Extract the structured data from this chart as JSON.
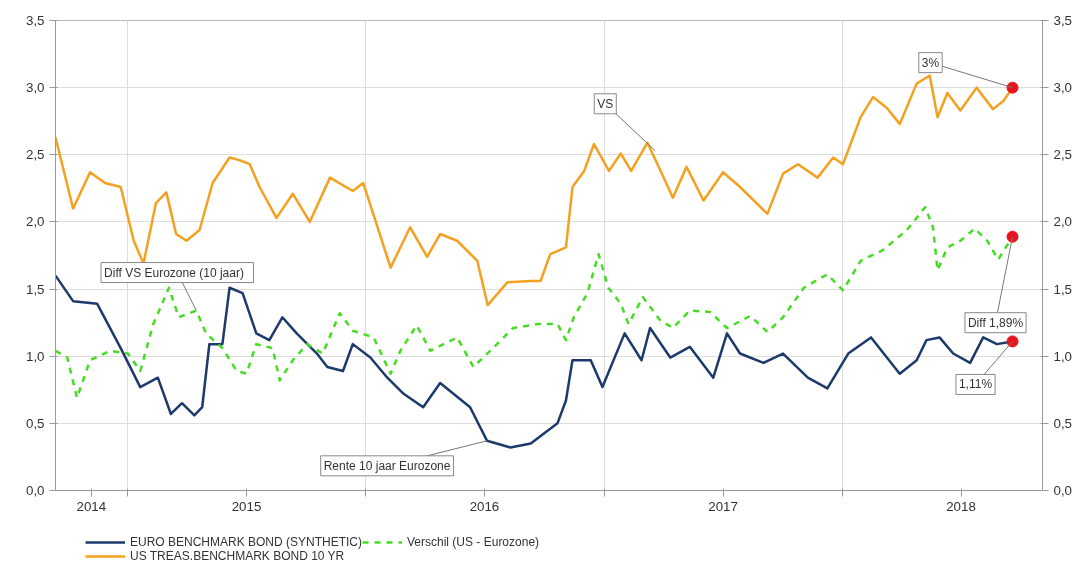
{
  "chart_data": {
    "type": "line",
    "xlim": [
      "2014-09-12",
      "2018-11-04"
    ],
    "xticks": [
      {
        "value": "2014-11-06",
        "label": "2014"
      },
      {
        "value": "2015-01-01",
        "label": null
      },
      {
        "value": "2015-07-02",
        "label": "2015"
      },
      {
        "value": "2016-01-01",
        "label": null
      },
      {
        "value": "2016-07-01",
        "label": "2016"
      },
      {
        "value": "2017-01-01",
        "label": null
      },
      {
        "value": "2017-07-02",
        "label": "2017"
      },
      {
        "value": "2018-01-01",
        "label": null
      },
      {
        "value": "2018-07-02",
        "label": "2018"
      }
    ],
    "ylim": [
      0,
      3.5
    ],
    "yticks": [
      {
        "value": 0,
        "label": "0,0"
      },
      {
        "value": 0.5,
        "label": "0,5"
      },
      {
        "value": 1,
        "label": "1,0"
      },
      {
        "value": 1.5,
        "label": "1,5"
      },
      {
        "value": 2,
        "label": "2,0"
      },
      {
        "value": 2.5,
        "label": "2,5"
      },
      {
        "value": 3,
        "label": "3,0"
      },
      {
        "value": 3.5,
        "label": "3,5"
      }
    ],
    "y2lim": [
      0,
      3.5
    ],
    "y2ticks": [
      {
        "value": 0,
        "label": "0,0"
      },
      {
        "value": 0.5,
        "label": "0,5"
      },
      {
        "value": 1,
        "label": "1,0"
      },
      {
        "value": 1.5,
        "label": "1,5"
      },
      {
        "value": 2,
        "label": "2,0"
      },
      {
        "value": 2.5,
        "label": "2,5"
      },
      {
        "value": 3,
        "label": "3,0"
      },
      {
        "value": 3.5,
        "label": "3,5"
      }
    ],
    "grid": true,
    "legend": "bottom",
    "series": [
      {
        "name": "EURO BENCHMARK BOND (SYNTHETIC)",
        "color": "#1c3a6b",
        "line_style": "solid",
        "x": [
          "2014-09-12",
          "2014-10-09",
          "2014-11-15",
          "2014-12-21",
          "2015-01-20",
          "2015-02-16",
          "2015-03-08",
          "2015-03-25",
          "2015-04-13",
          "2015-04-25",
          "2015-05-06",
          "2015-05-26",
          "2015-06-06",
          "2015-06-26",
          "2015-07-17",
          "2015-08-06",
          "2015-08-26",
          "2015-09-17",
          "2015-10-18",
          "2015-11-03",
          "2015-11-27",
          "2015-12-12",
          "2016-01-08",
          "2016-02-03",
          "2016-02-28",
          "2016-03-29",
          "2016-04-24",
          "2016-06-09",
          "2016-07-05",
          "2016-08-10",
          "2016-09-10",
          "2016-10-21",
          "2016-11-03",
          "2016-11-13",
          "2016-12-11",
          "2016-12-29",
          "2017-02-01",
          "2017-02-27",
          "2017-03-12",
          "2017-04-12",
          "2017-05-12",
          "2017-06-17",
          "2017-07-08",
          "2017-07-28",
          "2017-09-02",
          "2017-10-02",
          "2017-11-09",
          "2017-12-09",
          "2018-01-10",
          "2018-02-14",
          "2018-03-30",
          "2018-04-25",
          "2018-05-10",
          "2018-05-30",
          "2018-06-20",
          "2018-07-16",
          "2018-08-05",
          "2018-08-26",
          "2018-09-19"
        ],
        "values": [
          1.6,
          1.41,
          1.39,
          1.06,
          0.77,
          0.84,
          0.57,
          0.65,
          0.56,
          0.62,
          1.09,
          1.09,
          1.51,
          1.47,
          1.17,
          1.12,
          1.29,
          1.17,
          1.02,
          0.92,
          0.89,
          1.09,
          0.99,
          0.84,
          0.72,
          0.62,
          0.8,
          0.62,
          0.37,
          0.32,
          0.35,
          0.5,
          0.67,
          0.97,
          0.97,
          0.77,
          1.17,
          0.97,
          1.21,
          0.99,
          1.07,
          0.84,
          1.17,
          1.02,
          0.95,
          1.02,
          0.84,
          0.76,
          1.02,
          1.14,
          0.87,
          0.97,
          1.12,
          1.14,
          1.02,
          0.95,
          1.14,
          1.09,
          1.11
        ]
      },
      {
        "name": "US TREAS.BENCHMARK BOND 10 YR",
        "color": "#f4a020",
        "line_style": "solid",
        "x": [
          "2014-09-12",
          "2014-10-09",
          "2014-11-04",
          "2014-11-27",
          "2014-12-21",
          "2015-01-10",
          "2015-01-25",
          "2015-02-13",
          "2015-03-01",
          "2015-03-16",
          "2015-04-01",
          "2015-04-21",
          "2015-05-11",
          "2015-06-06",
          "2015-06-21",
          "2015-07-07",
          "2015-07-22",
          "2015-08-17",
          "2015-09-11",
          "2015-10-07",
          "2015-11-07",
          "2015-12-12",
          "2015-12-28",
          "2016-02-08",
          "2016-03-09",
          "2016-04-04",
          "2016-04-24",
          "2016-05-20",
          "2016-06-20",
          "2016-07-06",
          "2016-08-05",
          "2016-09-10",
          "2016-09-25",
          "2016-10-10",
          "2016-11-03",
          "2016-11-13",
          "2016-12-01",
          "2016-12-16",
          "2017-01-08",
          "2017-01-26",
          "2017-02-11",
          "2017-03-08",
          "2017-03-30",
          "2017-04-16",
          "2017-05-07",
          "2017-06-02",
          "2017-07-02",
          "2017-07-28",
          "2017-09-08",
          "2017-10-02",
          "2017-10-25",
          "2017-11-24",
          "2017-12-18",
          "2018-01-02",
          "2018-01-29",
          "2018-02-17",
          "2018-03-10",
          "2018-03-30",
          "2018-04-25",
          "2018-05-15",
          "2018-05-27",
          "2018-06-11",
          "2018-07-01",
          "2018-07-26",
          "2018-08-20",
          "2018-09-05",
          "2018-09-19"
        ],
        "values": [
          2.63,
          2.1,
          2.37,
          2.29,
          2.26,
          1.86,
          1.69,
          2.14,
          2.22,
          1.91,
          1.86,
          1.94,
          2.29,
          2.48,
          2.46,
          2.43,
          2.26,
          2.03,
          2.21,
          2.0,
          2.33,
          2.23,
          2.29,
          1.66,
          1.96,
          1.74,
          1.91,
          1.86,
          1.71,
          1.38,
          1.55,
          1.56,
          1.56,
          1.76,
          1.81,
          2.26,
          2.38,
          2.58,
          2.38,
          2.51,
          2.38,
          2.59,
          2.36,
          2.18,
          2.41,
          2.16,
          2.37,
          2.26,
          2.06,
          2.36,
          2.43,
          2.33,
          2.48,
          2.43,
          2.78,
          2.93,
          2.85,
          2.73,
          3.03,
          3.09,
          2.78,
          2.96,
          2.83,
          3.0,
          2.84,
          2.9,
          3.0
        ]
      },
      {
        "name": "Verschil (US - Eurozone)",
        "color": "#44dd22",
        "line_style": "dashed",
        "x": [
          "2014-09-12",
          "2014-09-30",
          "2014-10-15",
          "2014-11-04",
          "2014-12-05",
          "2015-01-01",
          "2015-01-20",
          "2015-02-09",
          "2015-03-05",
          "2015-03-20",
          "2015-04-16",
          "2015-05-01",
          "2015-05-26",
          "2015-06-17",
          "2015-07-02",
          "2015-07-17",
          "2015-08-11",
          "2015-08-22",
          "2015-09-11",
          "2015-10-03",
          "2015-10-27",
          "2015-11-22",
          "2015-12-12",
          "2016-01-13",
          "2016-02-08",
          "2016-02-23",
          "2016-03-19",
          "2016-04-09",
          "2016-05-20",
          "2016-06-14",
          "2016-07-14",
          "2016-08-14",
          "2016-09-21",
          "2016-10-21",
          "2016-11-03",
          "2016-11-15",
          "2016-12-06",
          "2016-12-23",
          "2017-01-07",
          "2017-01-26",
          "2017-02-07",
          "2017-03-01",
          "2017-03-27",
          "2017-04-16",
          "2017-05-12",
          "2017-06-12",
          "2017-07-08",
          "2017-08-13",
          "2017-09-08",
          "2017-10-02",
          "2017-11-03",
          "2017-12-09",
          "2018-01-02",
          "2018-01-29",
          "2018-03-04",
          "2018-04-10",
          "2018-05-08",
          "2018-05-20",
          "2018-05-27",
          "2018-06-11",
          "2018-07-01",
          "2018-07-23",
          "2018-08-11",
          "2018-08-28",
          "2018-09-19"
        ],
        "values": [
          1.04,
          0.99,
          0.69,
          0.97,
          1.04,
          1.02,
          0.89,
          1.24,
          1.51,
          1.29,
          1.34,
          1.17,
          1.06,
          0.89,
          0.87,
          1.09,
          1.06,
          0.82,
          0.97,
          1.09,
          1.02,
          1.32,
          1.19,
          1.14,
          0.87,
          1.04,
          1.23,
          1.04,
          1.14,
          0.92,
          1.06,
          1.21,
          1.24,
          1.24,
          1.12,
          1.29,
          1.47,
          1.76,
          1.51,
          1.39,
          1.24,
          1.44,
          1.27,
          1.21,
          1.34,
          1.33,
          1.21,
          1.3,
          1.18,
          1.29,
          1.51,
          1.61,
          1.49,
          1.71,
          1.79,
          1.94,
          2.11,
          1.96,
          1.64,
          1.81,
          1.86,
          1.95,
          1.86,
          1.72,
          1.89
        ]
      },
      {
        "color": "#e8141c",
        "type": "scatter",
        "marker": "circle",
        "x": [
          "2018-09-19",
          "2018-09-19",
          "2018-09-19"
        ],
        "values": [
          3.0,
          1.89,
          1.11
        ]
      }
    ],
    "annotations": [
      {
        "text": "Diff  VS  Eurozone (10 jaar)",
        "x": "2015-04-16",
        "y": 1.34
      },
      {
        "text": "Rente 10 jaar Eurozone",
        "x": "2016-07-05",
        "y": 0.37
      },
      {
        "text": "VS",
        "x": "2017-03-20",
        "y": 2.53
      },
      {
        "text": "3%",
        "x": "2018-09-19",
        "y": 3.0
      },
      {
        "text": "Diff 1,89%",
        "x": "2018-09-19",
        "y": 1.89
      },
      {
        "text": "1,11%",
        "x": "2018-09-19",
        "y": 1.11
      }
    ]
  }
}
